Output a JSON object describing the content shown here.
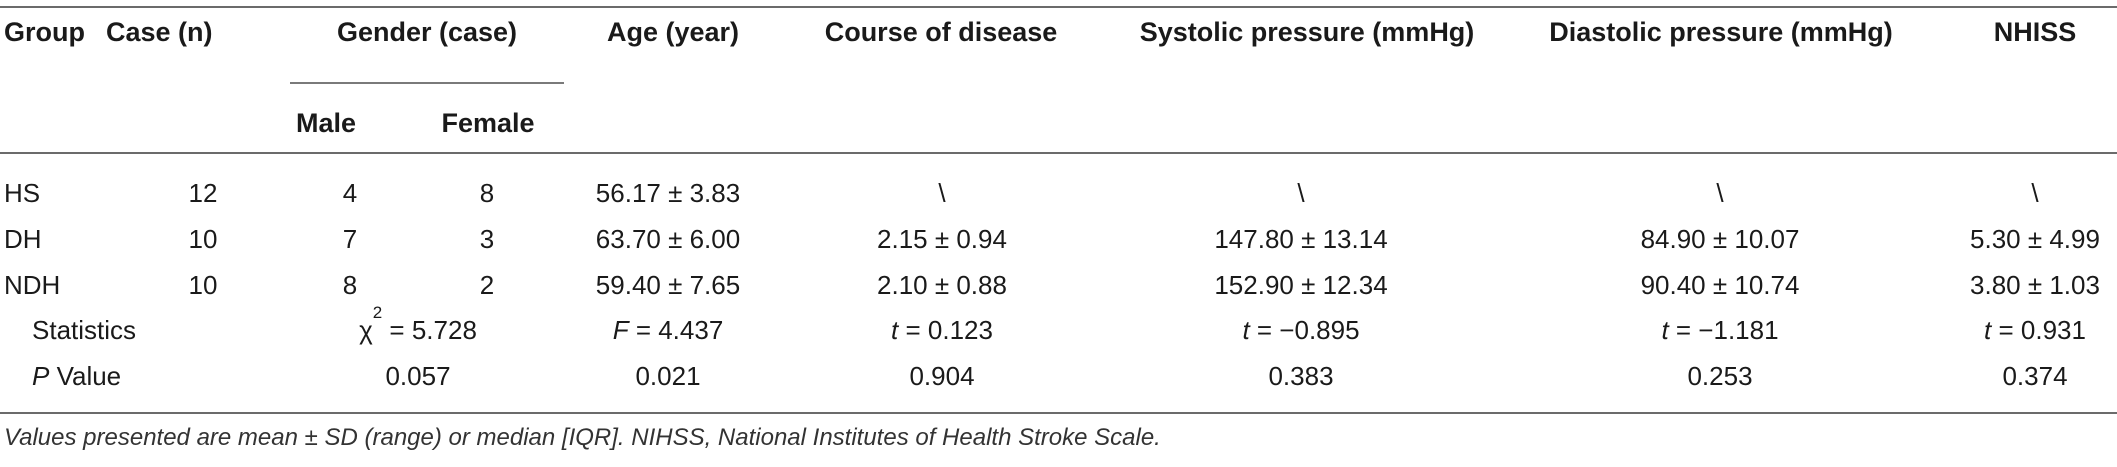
{
  "table": {
    "headers": {
      "group": "Group",
      "case": "Case (n)",
      "gender": "Gender (case)",
      "male": "Male",
      "female": "Female",
      "age": "Age (year)",
      "course": "Course of disease",
      "systolic": "Systolic pressure (mmHg)",
      "diastolic": "Diastolic pressure (mmHg)",
      "nihss": "NHISS"
    },
    "rows": [
      {
        "group": "HS",
        "case": "12",
        "male": "4",
        "female": "8",
        "age": "56.17 ± 3.83",
        "course": "\\",
        "systolic": "\\",
        "diastolic": "\\",
        "nihss": "\\"
      },
      {
        "group": "DH",
        "case": "10",
        "male": "7",
        "female": "3",
        "age": "63.70 ± 6.00",
        "course": "2.15 ± 0.94",
        "systolic": "147.80 ± 13.14",
        "diastolic": "84.90 ± 10.07",
        "nihss": "5.30 ± 4.99"
      },
      {
        "group": "NDH",
        "case": "10",
        "male": "8",
        "female": "2",
        "age": "59.40 ± 7.65",
        "course": "2.10 ± 0.88",
        "systolic": "152.90 ± 12.34",
        "diastolic": "90.40 ± 10.74",
        "nihss": "3.80 ± 1.03"
      }
    ],
    "statistics": {
      "label": "Statistics",
      "gender": {
        "symbol": "χ",
        "sup": "2",
        "value": " = 5.728"
      },
      "age": {
        "symbol": "F",
        "value": " = 4.437"
      },
      "course": {
        "symbol": "t",
        "value": " = 0.123"
      },
      "systolic": {
        "symbol": "t",
        "value": " = −0.895"
      },
      "diastolic": {
        "symbol": "t",
        "value": " = −1.181"
      },
      "nihss": {
        "symbol": "t",
        "value": " = 0.931"
      }
    },
    "pvalue": {
      "label_symbol": "P",
      "label_rest": " Value",
      "gender": "0.057",
      "age": "0.021",
      "course": "0.904",
      "systolic": "0.383",
      "diastolic": "0.253",
      "nihss": "0.374"
    }
  },
  "footnote": "Values presented are mean ± SD (range) or median [IQR]. NIHSS, National Institutes of Health Stroke Scale."
}
